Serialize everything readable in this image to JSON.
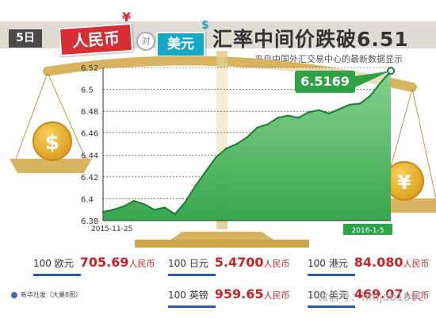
{
  "header": {
    "date_label": "5日",
    "currency_a": "人民币",
    "vs_label": "对",
    "currency_b": "美元",
    "headline": "汇率中间价跌破6.51",
    "subline": "来自中国外汇交易中心的最新数据显示",
    "dollar_mark": "$",
    "yen_mark": "¥"
  },
  "callout": {
    "value": "6.5169"
  },
  "chart_data": {
    "type": "area",
    "ylim": [
      6.38,
      6.52
    ],
    "y_ticks": [
      "6.52",
      "6.5",
      "6.48",
      "6.46",
      "6.44",
      "6.42",
      "6.4",
      "6.38"
    ],
    "x_start_label": "2015-11-25",
    "x_end_label": "2016-1-5",
    "x": [
      "2015-11-25",
      "2015-11-26",
      "2015-11-27",
      "2015-11-30",
      "2015-12-01",
      "2015-12-02",
      "2015-12-03",
      "2015-12-04",
      "2015-12-07",
      "2015-12-08",
      "2015-12-09",
      "2015-12-10",
      "2015-12-11",
      "2015-12-14",
      "2015-12-15",
      "2015-12-16",
      "2015-12-17",
      "2015-12-18",
      "2015-12-21",
      "2015-12-22",
      "2015-12-23",
      "2015-12-24",
      "2015-12-25",
      "2015-12-28",
      "2015-12-29",
      "2015-12-30",
      "2015-12-31",
      "2016-01-04",
      "2016-01-05"
    ],
    "values": [
      6.388,
      6.39,
      6.393,
      6.398,
      6.395,
      6.39,
      6.392,
      6.386,
      6.397,
      6.412,
      6.425,
      6.438,
      6.446,
      6.45,
      6.456,
      6.465,
      6.468,
      6.474,
      6.476,
      6.474,
      6.479,
      6.481,
      6.478,
      6.482,
      6.486,
      6.487,
      6.494,
      6.506,
      6.5169
    ],
    "colors": {
      "area": "#2fa247",
      "area_top": "#7fcf86",
      "line": "#1a7d33",
      "grid": "#333333",
      "balance": "#d8b360"
    }
  },
  "rates": [
    {
      "base": "100 欧元",
      "amount": "705.69",
      "unit": "人民币"
    },
    {
      "base": "100 日元",
      "amount": "5.4700",
      "unit": "人民币"
    },
    {
      "base": "100 港元",
      "amount": "84.080",
      "unit": "人民币"
    },
    {
      "base": "100 英镑",
      "amount": "959.65",
      "unit": "人民币"
    },
    {
      "base": "100 美元",
      "amount": "469.07",
      "unit": "人民币"
    }
  ],
  "footer": {
    "source": "新华社发（大巢8图）",
    "watermark": "微信号：hmjdb1992"
  }
}
